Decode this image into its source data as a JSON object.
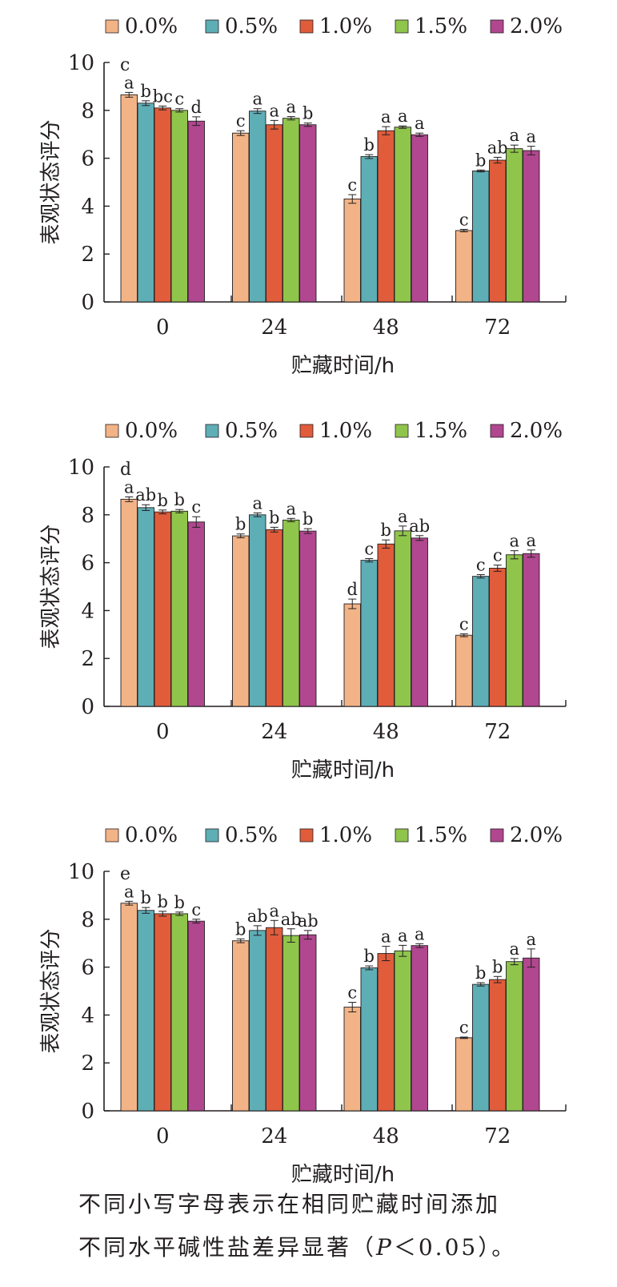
{
  "legend": [
    "0.0%",
    "0.5%",
    "1.0%",
    "1.5%",
    "2.0%"
  ],
  "colors": [
    "#f2b386",
    "#5eaeb6",
    "#e05c3b",
    "#8fc54b",
    "#b0478f"
  ],
  "chart_data": [
    {
      "type": "bar",
      "panel_label": "c",
      "categories": [
        "0",
        "24",
        "48",
        "72"
      ],
      "series": [
        {
          "name": "0.0%",
          "values": [
            8.65,
            7.05,
            4.3,
            2.98
          ],
          "errors": [
            0.1,
            0.1,
            0.18,
            0.05
          ],
          "letters": [
            "a",
            "c",
            "c",
            "c"
          ]
        },
        {
          "name": "0.5%",
          "values": [
            8.3,
            7.97,
            6.07,
            5.47
          ],
          "errors": [
            0.1,
            0.1,
            0.08,
            0.04
          ],
          "letters": [
            "b",
            "a",
            "b",
            "b"
          ]
        },
        {
          "name": "1.0%",
          "values": [
            8.1,
            7.4,
            7.15,
            5.92
          ],
          "errors": [
            0.08,
            0.18,
            0.17,
            0.12
          ],
          "letters": [
            "bc",
            "a",
            "a",
            "ab"
          ]
        },
        {
          "name": "1.5%",
          "values": [
            8.0,
            7.67,
            7.3,
            6.4
          ],
          "errors": [
            0.07,
            0.07,
            0.05,
            0.15
          ],
          "letters": [
            "c",
            "a",
            "a",
            "a"
          ]
        },
        {
          "name": "2.0%",
          "values": [
            7.55,
            7.4,
            6.98,
            6.32
          ],
          "errors": [
            0.18,
            0.07,
            0.07,
            0.18
          ],
          "letters": [
            "d",
            "b",
            "a",
            "a"
          ]
        }
      ],
      "ylabel": "表观状态评分",
      "xlabel": "贮藏时间/h",
      "ylim": [
        0,
        10
      ],
      "yticks": [
        "0",
        "2",
        "4",
        "6",
        "8",
        "10"
      ]
    },
    {
      "type": "bar",
      "panel_label": "d",
      "categories": [
        "0",
        "24",
        "48",
        "72"
      ],
      "series": [
        {
          "name": "0.0%",
          "values": [
            8.65,
            7.12,
            4.28,
            2.97
          ],
          "errors": [
            0.1,
            0.08,
            0.2,
            0.06
          ],
          "letters": [
            "a",
            "b",
            "d",
            "c"
          ]
        },
        {
          "name": "0.5%",
          "values": [
            8.3,
            8.0,
            6.1,
            5.43
          ],
          "errors": [
            0.12,
            0.08,
            0.07,
            0.07
          ],
          "letters": [
            "ab",
            "a",
            "c",
            "c"
          ]
        },
        {
          "name": "1.0%",
          "values": [
            8.12,
            7.38,
            6.78,
            5.77
          ],
          "errors": [
            0.08,
            0.1,
            0.17,
            0.13
          ],
          "letters": [
            "b",
            "b",
            "b",
            "c"
          ]
        },
        {
          "name": "1.5%",
          "values": [
            8.15,
            7.78,
            7.33,
            6.33
          ],
          "errors": [
            0.07,
            0.07,
            0.2,
            0.17
          ],
          "letters": [
            "b",
            "a",
            "a",
            "a"
          ]
        },
        {
          "name": "2.0%",
          "values": [
            7.7,
            7.32,
            7.03,
            6.38
          ],
          "errors": [
            0.22,
            0.1,
            0.1,
            0.15
          ],
          "letters": [
            "c",
            "b",
            "ab",
            "a"
          ]
        }
      ],
      "ylabel": "表观状态评分",
      "xlabel": "贮藏时间/h",
      "ylim": [
        0,
        10
      ],
      "yticks": [
        "0",
        "2",
        "4",
        "6",
        "8",
        "10"
      ]
    },
    {
      "type": "bar",
      "panel_label": "e",
      "categories": [
        "0",
        "24",
        "48",
        "72"
      ],
      "series": [
        {
          "name": "0.0%",
          "values": [
            8.67,
            7.1,
            4.33,
            3.05
          ],
          "errors": [
            0.08,
            0.08,
            0.2,
            0.03
          ],
          "letters": [
            "a",
            "b",
            "c",
            "c"
          ]
        },
        {
          "name": "0.5%",
          "values": [
            8.37,
            7.53,
            5.97,
            5.28
          ],
          "errors": [
            0.12,
            0.2,
            0.08,
            0.07
          ],
          "letters": [
            "b",
            "ab",
            "b",
            "b"
          ]
        },
        {
          "name": "1.0%",
          "values": [
            8.23,
            7.65,
            6.57,
            5.48
          ],
          "errors": [
            0.1,
            0.3,
            0.3,
            0.13
          ],
          "letters": [
            "b",
            "a",
            "a",
            "b"
          ]
        },
        {
          "name": "1.5%",
          "values": [
            8.23,
            7.32,
            6.68,
            6.23
          ],
          "errors": [
            0.07,
            0.28,
            0.23,
            0.13
          ],
          "letters": [
            "b",
            "ab",
            "a",
            "a"
          ]
        },
        {
          "name": "2.0%",
          "values": [
            7.92,
            7.35,
            6.9,
            6.38
          ],
          "errors": [
            0.08,
            0.18,
            0.08,
            0.38
          ],
          "letters": [
            "c",
            "ab",
            "a",
            "a"
          ]
        }
      ],
      "ylabel": "表观状态评分",
      "xlabel": "贮藏时间/h",
      "ylim": [
        0,
        10
      ],
      "yticks": [
        "0",
        "2",
        "4",
        "6",
        "8",
        "10"
      ]
    }
  ],
  "note": {
    "line1": "不同小写字母表示在相同贮藏时间添加",
    "line2_prefix": "不同水平碱性盐差异显著（",
    "line2_p": "P",
    "line2_cond": "＜0.05",
    "line2_suffix": "）。"
  }
}
